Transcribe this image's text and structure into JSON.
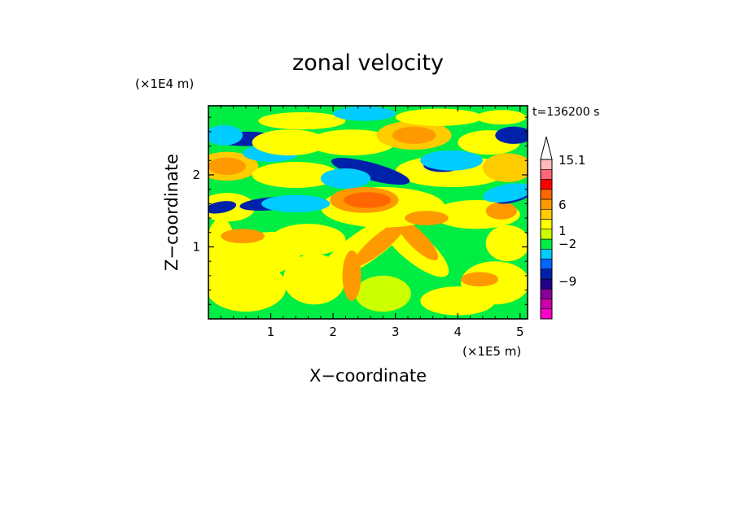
{
  "chart_data": {
    "type": "heatmap",
    "title": "zonal velocity",
    "xlabel": "X−coordinate",
    "ylabel": "Z−coordinate",
    "x_unit": "(×1E5 m)",
    "y_unit": "(×1E4 m)",
    "time_label": "t=136200 s",
    "xlim": [
      0,
      5.12
    ],
    "ylim": [
      0,
      2.96
    ],
    "x_ticks": [
      "1",
      "2",
      "3",
      "4",
      "5"
    ],
    "y_ticks": [
      "1",
      "2"
    ],
    "colorbar": {
      "labels": [
        "15.1",
        "6",
        "1",
        "−2",
        "−9"
      ],
      "colors": [
        "#ff00cc",
        "#cc00aa",
        "#880099",
        "#220088",
        "#0022aa",
        "#0066ff",
        "#00ccff",
        "#00ee44",
        "#ccff00",
        "#ffff00",
        "#ffcc00",
        "#ff9900",
        "#ff6600",
        "#ff0000",
        "#ff6677",
        "#ffbbbb",
        "#ffffff"
      ]
    },
    "field_color_levels": [
      "#0022aa",
      "#00ccff",
      "#00ee44",
      "#ccff00",
      "#ffff00",
      "#ffcc00",
      "#ff9900",
      "#ff6600"
    ]
  }
}
